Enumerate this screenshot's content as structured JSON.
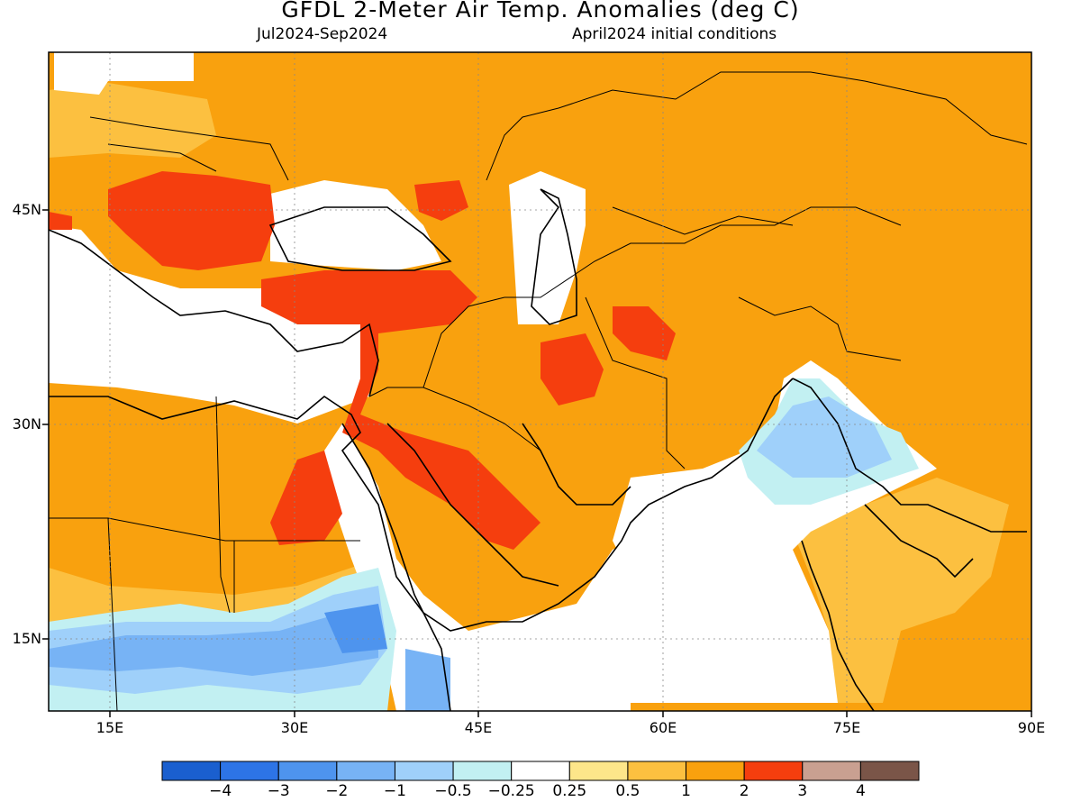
{
  "header": {
    "title": "GFDL 2-Meter Air Temp. Anomalies (deg C)",
    "period": "Jul2024-Sep2024",
    "initial_conditions": "April2024 initial conditions"
  },
  "map": {
    "lon_range": [
      10,
      90
    ],
    "lat_range": [
      10,
      48.5
    ],
    "lon_ticks": [
      "15E",
      "30E",
      "45E",
      "60E",
      "75E",
      "90E"
    ],
    "lat_ticks": [
      "45N",
      "30N",
      "15N"
    ]
  },
  "colorbar": {
    "labels": [
      "-4",
      "-3",
      "-2",
      "-1",
      "-0.5",
      "-0.25",
      "0.25",
      "0.5",
      "1",
      "2",
      "3",
      "4"
    ],
    "colors": [
      "#1a5fcf",
      "#2d74e6",
      "#4e94ee",
      "#77b3f5",
      "#9fd0fa",
      "#c2f0f2",
      "#ffffff",
      "#fde68a",
      "#fcc040",
      "#f9a10e",
      "#f53e0e",
      "#c9a091",
      "#7a5548"
    ]
  }
}
